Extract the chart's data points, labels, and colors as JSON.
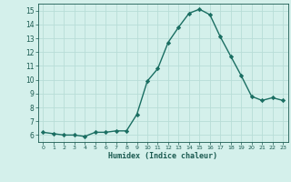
{
  "x": [
    0,
    1,
    2,
    3,
    4,
    5,
    6,
    7,
    8,
    9,
    10,
    11,
    12,
    13,
    14,
    15,
    16,
    17,
    18,
    19,
    20,
    21,
    22,
    23
  ],
  "y": [
    6.2,
    6.1,
    6.0,
    6.0,
    5.9,
    6.2,
    6.2,
    6.3,
    6.3,
    7.5,
    9.9,
    10.8,
    12.7,
    13.8,
    14.8,
    15.1,
    14.7,
    13.1,
    11.7,
    10.3,
    8.8,
    8.5,
    8.7,
    8.5
  ],
  "xlim": [
    -0.5,
    23.5
  ],
  "ylim": [
    5.5,
    15.5
  ],
  "yticks": [
    6,
    7,
    8,
    9,
    10,
    11,
    12,
    13,
    14,
    15
  ],
  "xticks": [
    0,
    1,
    2,
    3,
    4,
    5,
    6,
    7,
    8,
    9,
    10,
    11,
    12,
    13,
    14,
    15,
    16,
    17,
    18,
    19,
    20,
    21,
    22,
    23
  ],
  "xlabel": "Humidex (Indice chaleur)",
  "line_color": "#1a6e62",
  "bg_color": "#d4f0eb",
  "grid_color": "#b8ddd7",
  "tick_color": "#1a5a50",
  "marker": "D",
  "markersize": 2.2,
  "linewidth": 1.0
}
